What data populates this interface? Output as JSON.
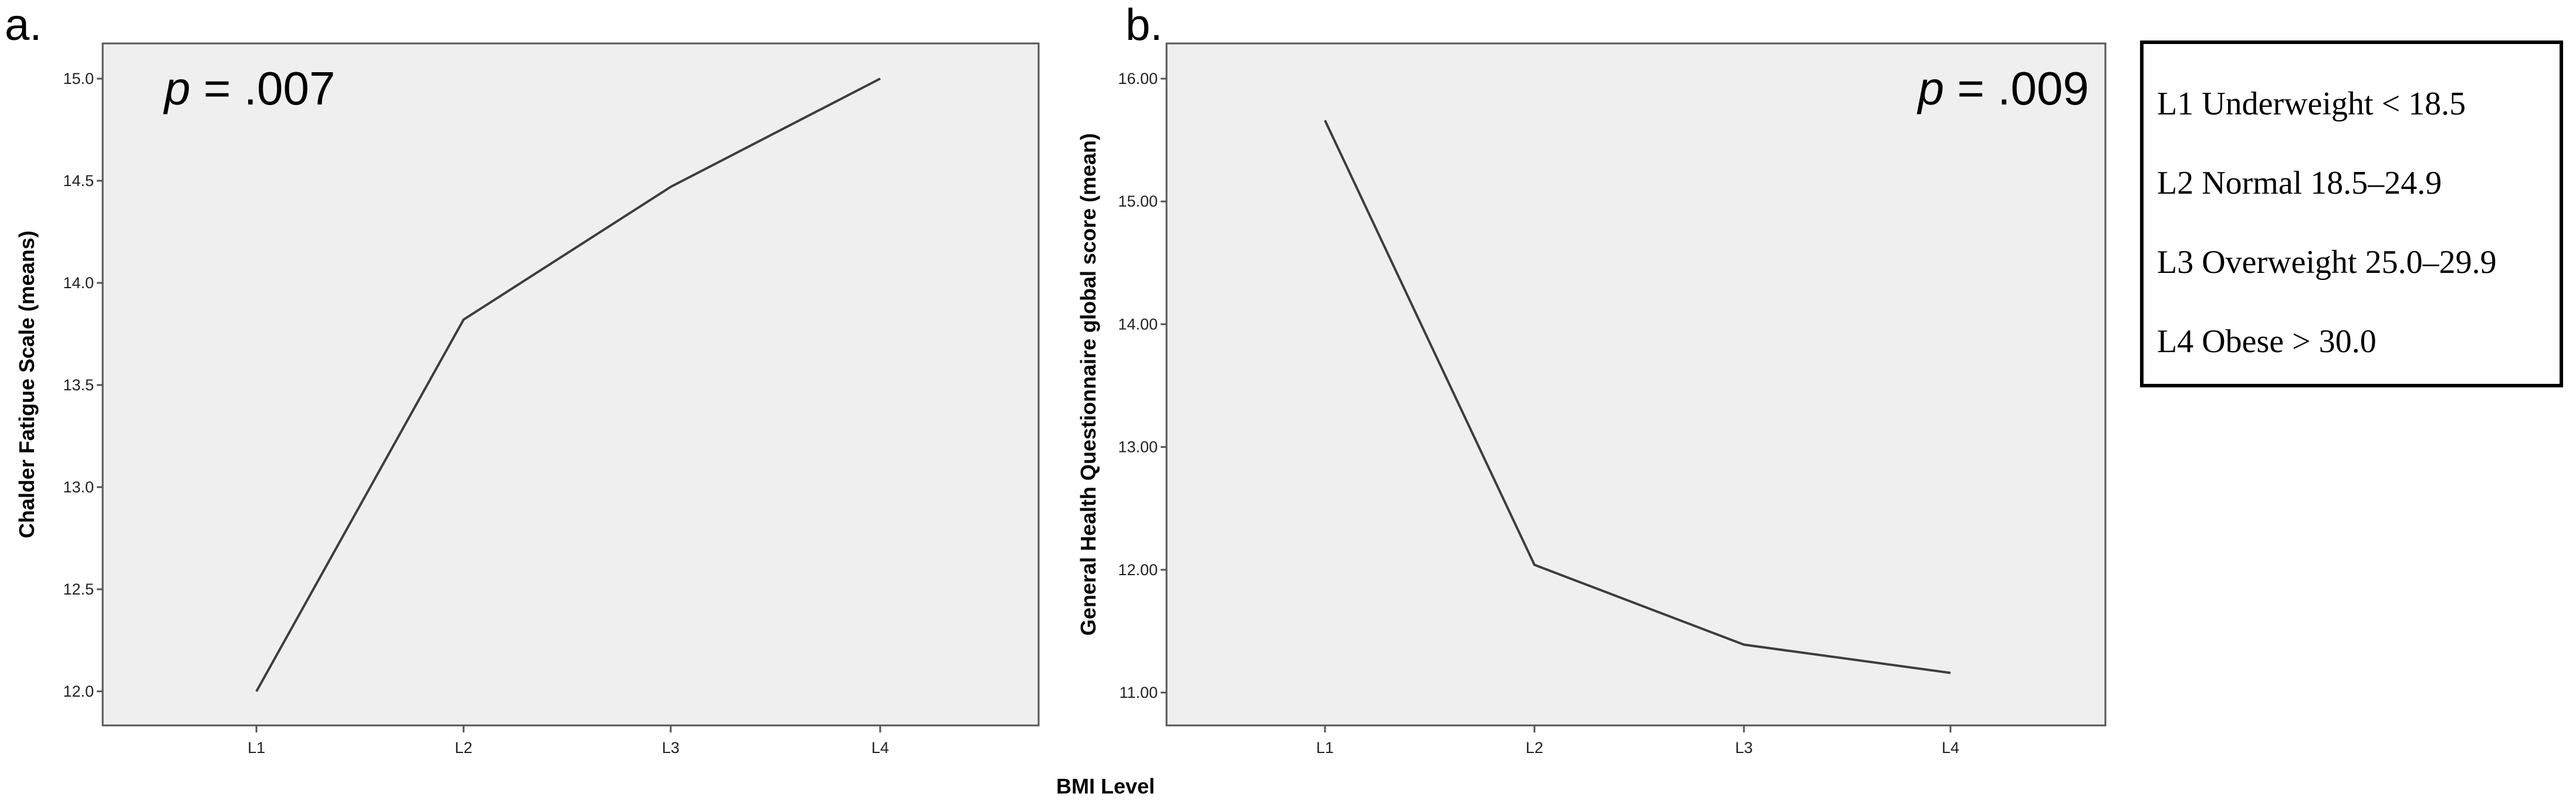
{
  "colors": {
    "plot_background": "#efefef",
    "line": "#3d3d3d",
    "axis": "#555555"
  },
  "xlabel_shared": "BMI Level",
  "chart_data": [
    {
      "type": "line",
      "panel": "a.",
      "p_value": {
        "italic": "p",
        "rest": " = .007"
      },
      "categories": [
        "L1",
        "L2",
        "L3",
        "L4"
      ],
      "values": [
        12.0,
        13.82,
        14.47,
        15.0
      ],
      "ylabel": "Chalder Fatigue Scale (means)",
      "yticks": [
        "12.0",
        "12.5",
        "13.0",
        "13.5",
        "14.0",
        "14.5",
        "15.0"
      ],
      "ylim": [
        12.0,
        15.0
      ],
      "grid": false
    },
    {
      "type": "line",
      "panel": "b.",
      "p_value": {
        "italic": "p",
        "rest": " = .009"
      },
      "categories": [
        "L1",
        "L2",
        "L3",
        "L4"
      ],
      "values": [
        15.66,
        12.04,
        11.39,
        11.16
      ],
      "ylabel": "General Health Questionnaire global score (mean)",
      "yticks": [
        "11.00",
        "12.00",
        "13.00",
        "14.00",
        "15.00",
        "16.00"
      ],
      "ylim": [
        11.0,
        16.0
      ],
      "grid": false
    }
  ],
  "legend": [
    "L1 Underweight < 18.5",
    "L2 Normal 18.5–24.9",
    "L3 Overweight 25.0–29.9",
    "L4 Obese > 30.0"
  ]
}
